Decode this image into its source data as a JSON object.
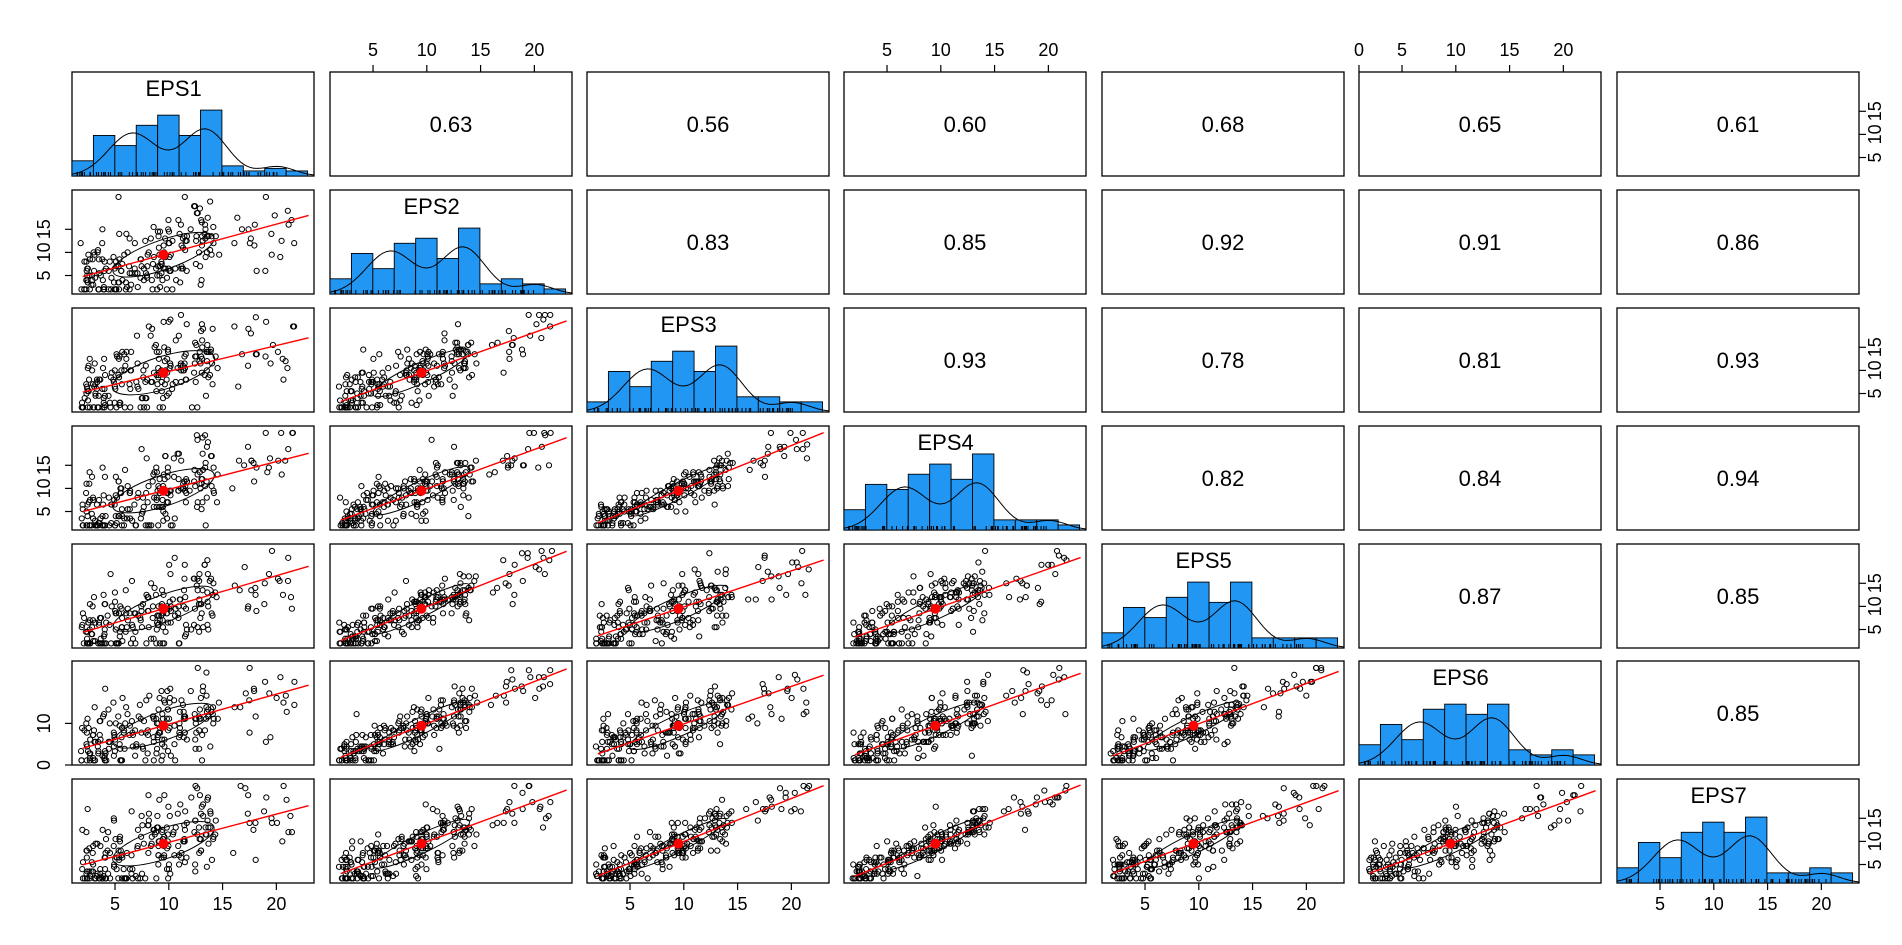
{
  "chart_data": {
    "type": "scatter",
    "variables": [
      "EPS1",
      "EPS2",
      "EPS3",
      "EPS4",
      "EPS5",
      "EPS6",
      "EPS7"
    ],
    "correlations": [
      {
        "row": 1,
        "col": 2,
        "label": "0.63"
      },
      {
        "row": 1,
        "col": 3,
        "label": "0.56"
      },
      {
        "row": 1,
        "col": 4,
        "label": "0.60"
      },
      {
        "row": 1,
        "col": 5,
        "label": "0.68"
      },
      {
        "row": 1,
        "col": 6,
        "label": "0.65"
      },
      {
        "row": 1,
        "col": 7,
        "label": "0.61"
      },
      {
        "row": 2,
        "col": 3,
        "label": "0.83"
      },
      {
        "row": 2,
        "col": 4,
        "label": "0.85"
      },
      {
        "row": 2,
        "col": 5,
        "label": "0.92"
      },
      {
        "row": 2,
        "col": 6,
        "label": "0.91"
      },
      {
        "row": 2,
        "col": 7,
        "label": "0.86"
      },
      {
        "row": 3,
        "col": 4,
        "label": "0.93"
      },
      {
        "row": 3,
        "col": 5,
        "label": "0.78"
      },
      {
        "row": 3,
        "col": 6,
        "label": "0.81"
      },
      {
        "row": 3,
        "col": 7,
        "label": "0.93"
      },
      {
        "row": 4,
        "col": 5,
        "label": "0.82"
      },
      {
        "row": 4,
        "col": 6,
        "label": "0.84"
      },
      {
        "row": 4,
        "col": 7,
        "label": "0.94"
      },
      {
        "row": 5,
        "col": 6,
        "label": "0.87"
      },
      {
        "row": 5,
        "col": 7,
        "label": "0.85"
      },
      {
        "row": 6,
        "col": 7,
        "label": "0.85"
      }
    ],
    "histograms": [
      {
        "variable": "EPS1",
        "counts": [
          3,
          8,
          6,
          10,
          12,
          8,
          13,
          2,
          1,
          1.5,
          1
        ]
      },
      {
        "variable": "EPS2",
        "counts": [
          3,
          8,
          5,
          10,
          11,
          7,
          13,
          2,
          3,
          2,
          1
        ]
      },
      {
        "variable": "EPS3",
        "counts": [
          2,
          8,
          5,
          10,
          12,
          8,
          13,
          3,
          3,
          2,
          2
        ]
      },
      {
        "variable": "EPS4",
        "counts": [
          4,
          9,
          8,
          11,
          13,
          10,
          15,
          2,
          2,
          2,
          1
        ]
      },
      {
        "variable": "EPS5",
        "counts": [
          3,
          8,
          6,
          10,
          13,
          9,
          13,
          2,
          2,
          2,
          2
        ]
      },
      {
        "variable": "EPS6",
        "counts": [
          4,
          8,
          5,
          11,
          12,
          10,
          12,
          3,
          2,
          3,
          2
        ]
      },
      {
        "variable": "EPS7",
        "counts": [
          3,
          8,
          5,
          10,
          12,
          10,
          13,
          2,
          2,
          3,
          2
        ]
      }
    ],
    "fit_line": "red regression line with correlation ellipse per scatter panel",
    "top_axis_ticks": {
      "col2": [
        "5",
        "10",
        "15",
        "20"
      ],
      "col4": [
        "5",
        "10",
        "15",
        "20"
      ],
      "col6": [
        "0",
        "5",
        "10",
        "15",
        "20"
      ]
    },
    "bottom_axis_ticks": {
      "col1": [
        "5",
        "10",
        "15",
        "20"
      ],
      "col3": [
        "5",
        "10",
        "15",
        "20"
      ],
      "col5": [
        "5",
        "10",
        "15",
        "20"
      ],
      "col7": [
        "5",
        "10",
        "15",
        "20"
      ]
    },
    "left_axis_ticks": {
      "row2": [
        "5",
        "10",
        "15"
      ],
      "row4": [
        "5",
        "10",
        "15"
      ],
      "row6": [
        "0",
        "10"
      ]
    },
    "right_axis_ticks": {
      "row1": [
        "5",
        "10",
        "15"
      ],
      "row3": [
        "5",
        "10",
        "15"
      ],
      "row5": [
        "5",
        "10",
        "15"
      ],
      "row7": [
        "5",
        "10",
        "15"
      ]
    }
  }
}
